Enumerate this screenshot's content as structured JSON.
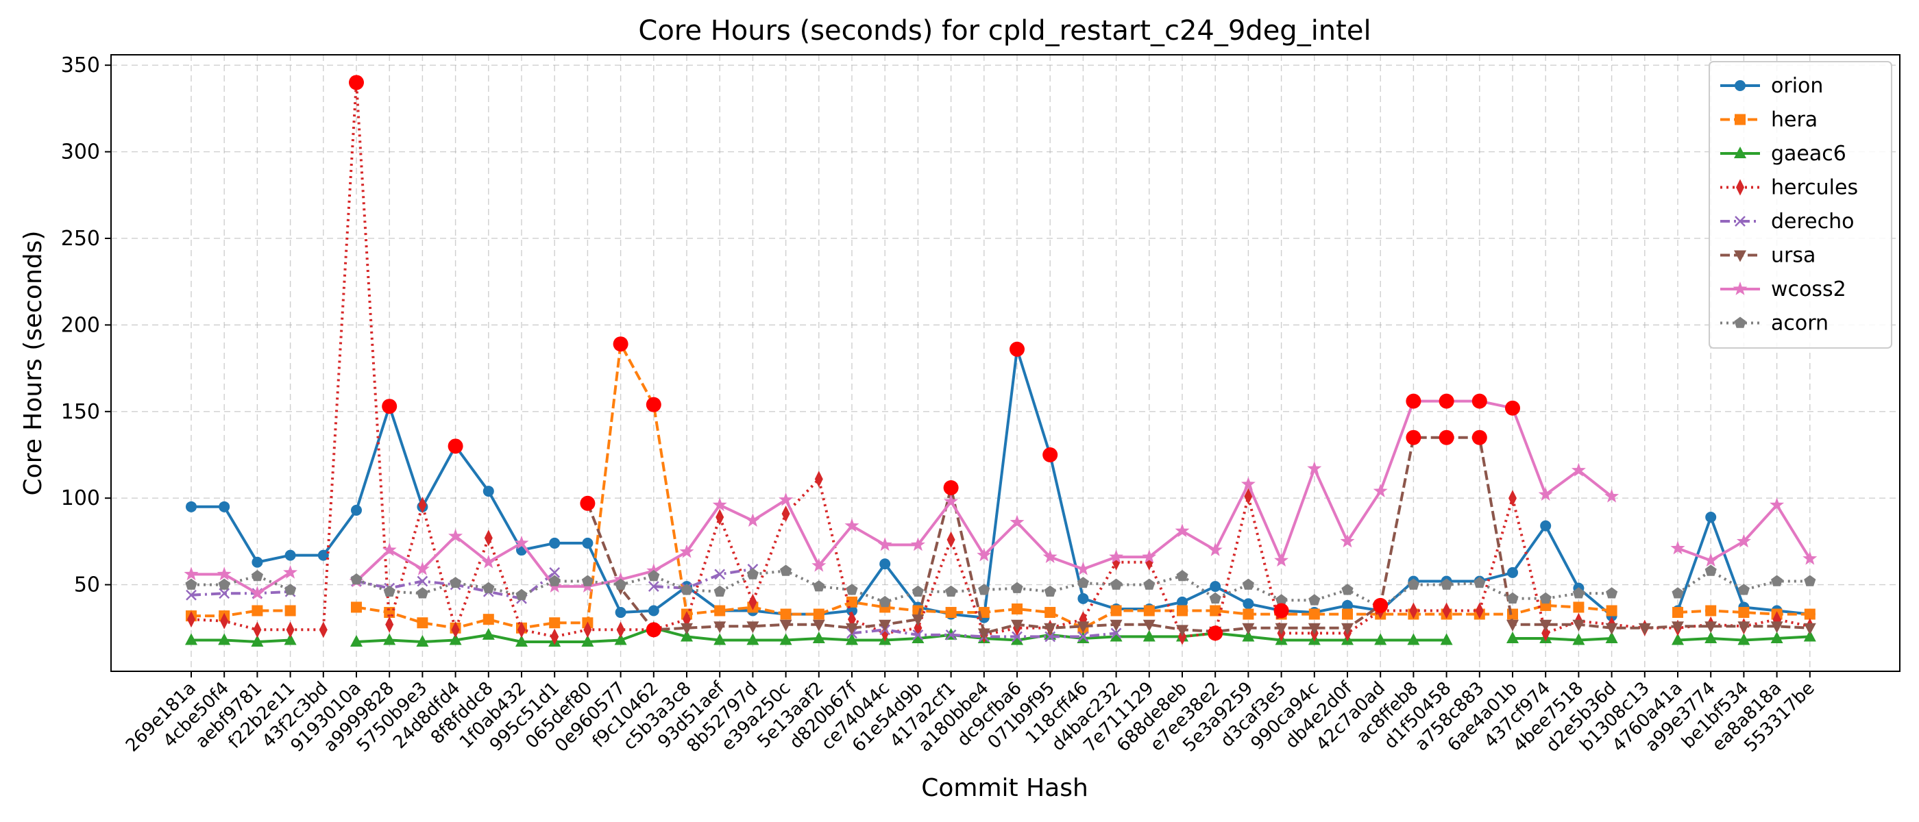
{
  "chart_data": {
    "type": "line",
    "title": "Core Hours (seconds) for cpld_restart_c24_9deg_intel",
    "xlabel": "Commit Hash",
    "ylabel": "Core Hours (seconds)",
    "ylim": [
      0,
      356
    ],
    "yticks": [
      50,
      100,
      150,
      200,
      250,
      300,
      350
    ],
    "grid": true,
    "legend_position": "top-right",
    "categories": [
      "269e181a",
      "4cbe50f4",
      "aebf9781",
      "f22b2e11",
      "43f2c3bd",
      "9193010a",
      "a9999828",
      "5750b9e3",
      "24d8dfd4",
      "8f8fddc8",
      "1f0ab432",
      "995c51d1",
      "065def80",
      "0e960577",
      "f9c10462",
      "c5b3a3c8",
      "93d51aef",
      "8b52797d",
      "e39a250c",
      "5e13aaf2",
      "d820b67f",
      "ce74044c",
      "61e54d9b",
      "417a2cf1",
      "a180bbe4",
      "dc9cfba6",
      "071b9f95",
      "118cff46",
      "d4bac232",
      "7e711129",
      "688de8eb",
      "e7ee38e2",
      "5e3a9259",
      "d3caf3e5",
      "990ca94c",
      "db4e2d0f",
      "42c7a0ad",
      "ac8ffeb8",
      "d1f50458",
      "a758c883",
      "6ae4a01b",
      "437cf974",
      "4bee7518",
      "d2e5b36d",
      "b1308c13",
      "4760a41a",
      "a99e3774",
      "be1bf534",
      "ea8a818a",
      "553317be"
    ],
    "series": [
      {
        "name": "orion",
        "color": "#1f77b4",
        "dash": "",
        "marker": "circle",
        "values": [
          95,
          95,
          63,
          67,
          67,
          93,
          153,
          95,
          130,
          104,
          70,
          74,
          74,
          34,
          35,
          49,
          35,
          35,
          33,
          33,
          35,
          62,
          37,
          33,
          31,
          186,
          125,
          42,
          36,
          36,
          40,
          49,
          39,
          35,
          34,
          38,
          35,
          52,
          52,
          52,
          57,
          84,
          48,
          32,
          null,
          35,
          89,
          37,
          35,
          33
        ]
      },
      {
        "name": "hera",
        "color": "#ff7f0e",
        "dash": "14 6",
        "marker": "square",
        "values": [
          32,
          32,
          35,
          35,
          null,
          37,
          34,
          28,
          25,
          30,
          25,
          28,
          28,
          189,
          154,
          33,
          35,
          37,
          33,
          33,
          40,
          37,
          35,
          34,
          34,
          36,
          34,
          25,
          35,
          35,
          35,
          35,
          33,
          33,
          33,
          33,
          33,
          33,
          33,
          33,
          33,
          38,
          37,
          35,
          null,
          34,
          35,
          34,
          33,
          33
        ]
      },
      {
        "name": "gaeac6",
        "color": "#2ca02c",
        "dash": "",
        "marker": "triangle-up",
        "values": [
          18,
          18,
          17,
          18,
          null,
          17,
          18,
          17,
          18,
          21,
          17,
          17,
          17,
          18,
          25,
          20,
          18,
          18,
          18,
          19,
          18,
          18,
          19,
          21,
          19,
          18,
          21,
          19,
          20,
          20,
          20,
          22,
          20,
          18,
          18,
          18,
          18,
          18,
          18,
          null,
          19,
          19,
          18,
          19,
          null,
          18,
          19,
          18,
          19,
          20
        ]
      },
      {
        "name": "hercules",
        "color": "#d62728",
        "dash": "3 6",
        "marker": "thin-diamond",
        "values": [
          30,
          29,
          24,
          24,
          24,
          340,
          27,
          96,
          24,
          77,
          24,
          20,
          24,
          24,
          24,
          30,
          89,
          40,
          91,
          111,
          30,
          22,
          25,
          76,
          21,
          25,
          25,
          30,
          63,
          63,
          20,
          22,
          101,
          22,
          22,
          22,
          35,
          35,
          35,
          35,
          100,
          22,
          29,
          27,
          25,
          25,
          27,
          26,
          30,
          26
        ]
      },
      {
        "name": "derecho",
        "color": "#9467bd",
        "dash": "14 6 3 6",
        "marker": "x",
        "values": [
          44,
          45,
          45,
          46,
          null,
          52,
          48,
          52,
          50,
          46,
          42,
          57,
          null,
          null,
          49,
          48,
          56,
          59,
          null,
          null,
          22,
          24,
          21,
          21,
          20,
          20,
          20,
          20,
          22,
          null,
          null,
          null,
          null,
          null,
          null,
          null,
          null,
          null,
          null,
          null,
          null,
          null,
          null,
          null,
          null,
          null,
          null,
          null,
          null,
          null
        ]
      },
      {
        "name": "ursa",
        "color": "#8c564b",
        "dash": "14 6",
        "marker": "triangle-down",
        "values": [
          null,
          null,
          null,
          null,
          null,
          null,
          null,
          null,
          null,
          null,
          null,
          null,
          97,
          48,
          24,
          25,
          26,
          26,
          27,
          27,
          25,
          27,
          30,
          106,
          22,
          27,
          25,
          26,
          27,
          27,
          24,
          23,
          25,
          25,
          25,
          25,
          38,
          135,
          135,
          135,
          27,
          27,
          27,
          25,
          25,
          26,
          26,
          26,
          26,
          25
        ]
      },
      {
        "name": "wcoss2",
        "color": "#e377c2",
        "dash": "",
        "marker": "star",
        "values": [
          56,
          56,
          45,
          57,
          null,
          52,
          70,
          59,
          78,
          63,
          74,
          49,
          49,
          53,
          58,
          69,
          96,
          87,
          99,
          61,
          84,
          73,
          73,
          98,
          67,
          86,
          66,
          59,
          66,
          66,
          81,
          70,
          108,
          64,
          117,
          75,
          104,
          156,
          156,
          156,
          152,
          102,
          116,
          101,
          null,
          71,
          64,
          75,
          96,
          65
        ]
      },
      {
        "name": "acorn",
        "color": "#7f7f7f",
        "dash": "3 6",
        "marker": "pentagon",
        "values": [
          50,
          50,
          55,
          47,
          null,
          53,
          46,
          45,
          51,
          48,
          44,
          52,
          52,
          50,
          55,
          47,
          46,
          56,
          58,
          49,
          47,
          40,
          46,
          46,
          47,
          48,
          46,
          51,
          50,
          50,
          55,
          42,
          50,
          41,
          41,
          47,
          37,
          50,
          50,
          51,
          42,
          42,
          45,
          45,
          null,
          45,
          58,
          47,
          52,
          52
        ]
      }
    ],
    "highlights": [
      {
        "category": "9193010a",
        "value": 340
      },
      {
        "category": "a9999828",
        "value": 153
      },
      {
        "category": "24d8dfd4",
        "value": 130
      },
      {
        "category": "065def80",
        "value": 97
      },
      {
        "category": "0e960577",
        "value": 189
      },
      {
        "category": "f9c10462",
        "value": 154
      },
      {
        "category": "f9c10462",
        "value": 24
      },
      {
        "category": "417a2cf1",
        "value": 106
      },
      {
        "category": "dc9cfba6",
        "value": 186
      },
      {
        "category": "071b9f95",
        "value": 125
      },
      {
        "category": "e7ee38e2",
        "value": 22
      },
      {
        "category": "d3caf3e5",
        "value": 35
      },
      {
        "category": "42c7a0ad",
        "value": 38
      },
      {
        "category": "ac8ffeb8",
        "value": 156
      },
      {
        "category": "d1f50458",
        "value": 156
      },
      {
        "category": "a758c883",
        "value": 156
      },
      {
        "category": "ac8ffeb8",
        "value": 135
      },
      {
        "category": "d1f50458",
        "value": 135
      },
      {
        "category": "a758c883",
        "value": 135
      },
      {
        "category": "6ae4a01b",
        "value": 152
      }
    ]
  }
}
